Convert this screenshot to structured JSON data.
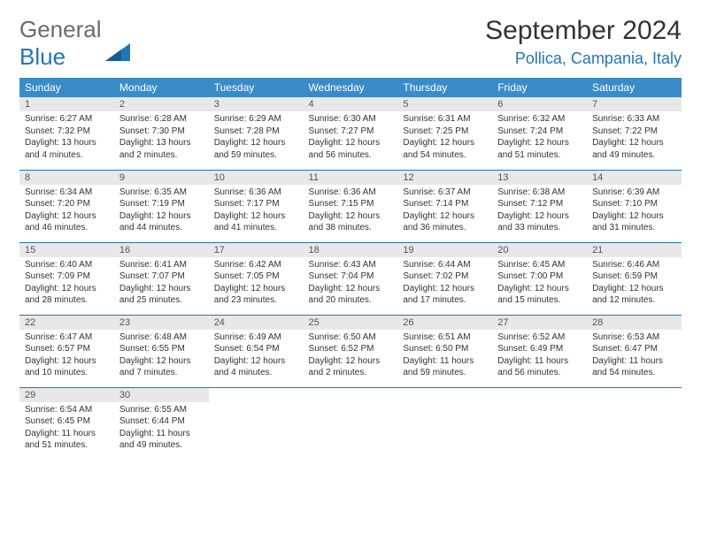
{
  "logo": {
    "word1": "General",
    "word2": "Blue"
  },
  "title": "September 2024",
  "location": "Pollica, Campania, Italy",
  "colors": {
    "header_bg": "#3a8cc9",
    "accent": "#2176b8",
    "daynum_bg": "#e8e8e8",
    "text": "#333333",
    "logo_gray": "#6b6b6b"
  },
  "weekdays": [
    "Sunday",
    "Monday",
    "Tuesday",
    "Wednesday",
    "Thursday",
    "Friday",
    "Saturday"
  ],
  "weeks": [
    [
      {
        "n": "1",
        "sr": "Sunrise: 6:27 AM",
        "ss": "Sunset: 7:32 PM",
        "d1": "Daylight: 13 hours",
        "d2": "and 4 minutes."
      },
      {
        "n": "2",
        "sr": "Sunrise: 6:28 AM",
        "ss": "Sunset: 7:30 PM",
        "d1": "Daylight: 13 hours",
        "d2": "and 2 minutes."
      },
      {
        "n": "3",
        "sr": "Sunrise: 6:29 AM",
        "ss": "Sunset: 7:28 PM",
        "d1": "Daylight: 12 hours",
        "d2": "and 59 minutes."
      },
      {
        "n": "4",
        "sr": "Sunrise: 6:30 AM",
        "ss": "Sunset: 7:27 PM",
        "d1": "Daylight: 12 hours",
        "d2": "and 56 minutes."
      },
      {
        "n": "5",
        "sr": "Sunrise: 6:31 AM",
        "ss": "Sunset: 7:25 PM",
        "d1": "Daylight: 12 hours",
        "d2": "and 54 minutes."
      },
      {
        "n": "6",
        "sr": "Sunrise: 6:32 AM",
        "ss": "Sunset: 7:24 PM",
        "d1": "Daylight: 12 hours",
        "d2": "and 51 minutes."
      },
      {
        "n": "7",
        "sr": "Sunrise: 6:33 AM",
        "ss": "Sunset: 7:22 PM",
        "d1": "Daylight: 12 hours",
        "d2": "and 49 minutes."
      }
    ],
    [
      {
        "n": "8",
        "sr": "Sunrise: 6:34 AM",
        "ss": "Sunset: 7:20 PM",
        "d1": "Daylight: 12 hours",
        "d2": "and 46 minutes."
      },
      {
        "n": "9",
        "sr": "Sunrise: 6:35 AM",
        "ss": "Sunset: 7:19 PM",
        "d1": "Daylight: 12 hours",
        "d2": "and 44 minutes."
      },
      {
        "n": "10",
        "sr": "Sunrise: 6:36 AM",
        "ss": "Sunset: 7:17 PM",
        "d1": "Daylight: 12 hours",
        "d2": "and 41 minutes."
      },
      {
        "n": "11",
        "sr": "Sunrise: 6:36 AM",
        "ss": "Sunset: 7:15 PM",
        "d1": "Daylight: 12 hours",
        "d2": "and 38 minutes."
      },
      {
        "n": "12",
        "sr": "Sunrise: 6:37 AM",
        "ss": "Sunset: 7:14 PM",
        "d1": "Daylight: 12 hours",
        "d2": "and 36 minutes."
      },
      {
        "n": "13",
        "sr": "Sunrise: 6:38 AM",
        "ss": "Sunset: 7:12 PM",
        "d1": "Daylight: 12 hours",
        "d2": "and 33 minutes."
      },
      {
        "n": "14",
        "sr": "Sunrise: 6:39 AM",
        "ss": "Sunset: 7:10 PM",
        "d1": "Daylight: 12 hours",
        "d2": "and 31 minutes."
      }
    ],
    [
      {
        "n": "15",
        "sr": "Sunrise: 6:40 AM",
        "ss": "Sunset: 7:09 PM",
        "d1": "Daylight: 12 hours",
        "d2": "and 28 minutes."
      },
      {
        "n": "16",
        "sr": "Sunrise: 6:41 AM",
        "ss": "Sunset: 7:07 PM",
        "d1": "Daylight: 12 hours",
        "d2": "and 25 minutes."
      },
      {
        "n": "17",
        "sr": "Sunrise: 6:42 AM",
        "ss": "Sunset: 7:05 PM",
        "d1": "Daylight: 12 hours",
        "d2": "and 23 minutes."
      },
      {
        "n": "18",
        "sr": "Sunrise: 6:43 AM",
        "ss": "Sunset: 7:04 PM",
        "d1": "Daylight: 12 hours",
        "d2": "and 20 minutes."
      },
      {
        "n": "19",
        "sr": "Sunrise: 6:44 AM",
        "ss": "Sunset: 7:02 PM",
        "d1": "Daylight: 12 hours",
        "d2": "and 17 minutes."
      },
      {
        "n": "20",
        "sr": "Sunrise: 6:45 AM",
        "ss": "Sunset: 7:00 PM",
        "d1": "Daylight: 12 hours",
        "d2": "and 15 minutes."
      },
      {
        "n": "21",
        "sr": "Sunrise: 6:46 AM",
        "ss": "Sunset: 6:59 PM",
        "d1": "Daylight: 12 hours",
        "d2": "and 12 minutes."
      }
    ],
    [
      {
        "n": "22",
        "sr": "Sunrise: 6:47 AM",
        "ss": "Sunset: 6:57 PM",
        "d1": "Daylight: 12 hours",
        "d2": "and 10 minutes."
      },
      {
        "n": "23",
        "sr": "Sunrise: 6:48 AM",
        "ss": "Sunset: 6:55 PM",
        "d1": "Daylight: 12 hours",
        "d2": "and 7 minutes."
      },
      {
        "n": "24",
        "sr": "Sunrise: 6:49 AM",
        "ss": "Sunset: 6:54 PM",
        "d1": "Daylight: 12 hours",
        "d2": "and 4 minutes."
      },
      {
        "n": "25",
        "sr": "Sunrise: 6:50 AM",
        "ss": "Sunset: 6:52 PM",
        "d1": "Daylight: 12 hours",
        "d2": "and 2 minutes."
      },
      {
        "n": "26",
        "sr": "Sunrise: 6:51 AM",
        "ss": "Sunset: 6:50 PM",
        "d1": "Daylight: 11 hours",
        "d2": "and 59 minutes."
      },
      {
        "n": "27",
        "sr": "Sunrise: 6:52 AM",
        "ss": "Sunset: 6:49 PM",
        "d1": "Daylight: 11 hours",
        "d2": "and 56 minutes."
      },
      {
        "n": "28",
        "sr": "Sunrise: 6:53 AM",
        "ss": "Sunset: 6:47 PM",
        "d1": "Daylight: 11 hours",
        "d2": "and 54 minutes."
      }
    ],
    [
      {
        "n": "29",
        "sr": "Sunrise: 6:54 AM",
        "ss": "Sunset: 6:45 PM",
        "d1": "Daylight: 11 hours",
        "d2": "and 51 minutes."
      },
      {
        "n": "30",
        "sr": "Sunrise: 6:55 AM",
        "ss": "Sunset: 6:44 PM",
        "d1": "Daylight: 11 hours",
        "d2": "and 49 minutes."
      },
      null,
      null,
      null,
      null,
      null
    ]
  ]
}
